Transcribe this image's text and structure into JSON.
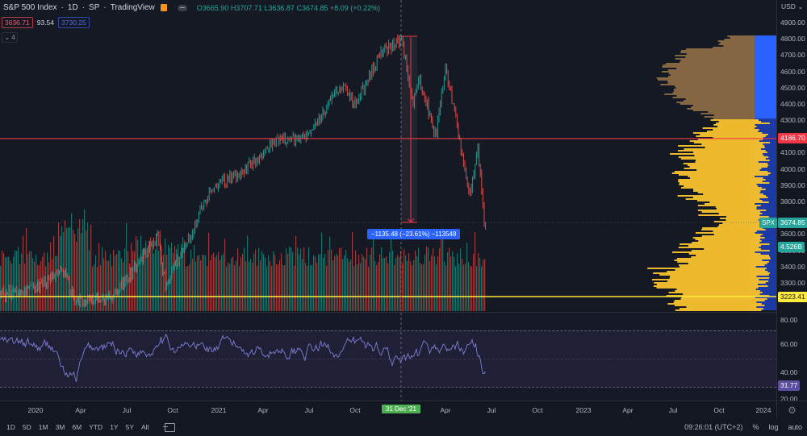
{
  "header": {
    "symbol_title": "S&P 500 Index",
    "interval": "1D",
    "exchange": "SP",
    "source": "TradingView",
    "ohlc": {
      "o_label": "O",
      "o": "3665.90",
      "h_label": "H",
      "h": "3707.71",
      "l_label": "L",
      "l": "3636.87",
      "c_label": "C",
      "c": "3674.85",
      "change": "+8.09 (+0.22%)"
    },
    "indicator_values": {
      "left": "3636.71",
      "mid": "93.54",
      "right": "3730.25"
    },
    "collapse_label": "⌄ 4"
  },
  "price_axis": {
    "currency": "USD",
    "ticks": [
      "4900.00",
      "4800.00",
      "4700.00",
      "4600.00",
      "4500.00",
      "4400.00",
      "4300.00",
      "4100.00",
      "4000.00",
      "3900.00",
      "3800.00",
      "3600.00",
      "3500.00",
      "3400.00",
      "3300.00"
    ],
    "tags": {
      "resistance": {
        "value": "4186.70",
        "color": "#f23645"
      },
      "symbol_label": "SPX",
      "last_price": {
        "value": "3674.85",
        "color": "#26a69a"
      },
      "volume_tag": {
        "value": "4.526B",
        "color": "#26a69a"
      },
      "support": {
        "value": "3223.41",
        "color": "#ffeb3b"
      }
    }
  },
  "rsi_axis": {
    "ticks": [
      "80.00",
      "60.00",
      "40.00",
      "20.00"
    ],
    "current": {
      "value": "31.77",
      "color": "#7e57c2"
    }
  },
  "time_axis": {
    "labels": [
      "2020",
      "Apr",
      "Jul",
      "Oct",
      "2021",
      "Apr",
      "Jul",
      "Oct",
      "Apr",
      "Jul",
      "Oct",
      "2023",
      "Apr",
      "Jul",
      "Oct",
      "2024"
    ],
    "cursor_label": "31 Dec '21"
  },
  "measure": {
    "label": "−1135.48 (−23.61%) −113548"
  },
  "bottom_bar": {
    "ranges": [
      "1D",
      "5D",
      "1M",
      "3M",
      "6M",
      "YTD",
      "1Y",
      "5Y",
      "All"
    ],
    "clock": "09:26:01 (UTC+2)",
    "percent": "%",
    "log": "log",
    "auto": "auto"
  },
  "colors": {
    "up": "#26a69a",
    "down": "#ef5350",
    "background": "#131722",
    "accent": "#2962ff",
    "rsi_line": "#7e7fd6",
    "profile_up": "#fbc02d",
    "profile_value_area": "#1e3fa8"
  },
  "chart_data": {
    "type": "candlestick",
    "title": "S&P 500 Index 1D",
    "key_points": [
      {
        "x": 0,
        "price": 3230
      },
      {
        "x": 35,
        "price": 3250
      },
      {
        "x": 80,
        "price": 3370
      },
      {
        "x": 92,
        "price": 3180
      },
      {
        "x": 140,
        "price": 3220
      },
      {
        "x": 195,
        "price": 3580
      },
      {
        "x": 205,
        "price": 3290
      },
      {
        "x": 225,
        "price": 3480
      },
      {
        "x": 262,
        "price": 3880
      },
      {
        "x": 300,
        "price": 3980
      },
      {
        "x": 340,
        "price": 4170
      },
      {
        "x": 375,
        "price": 4190
      },
      {
        "x": 400,
        "price": 4340
      },
      {
        "x": 425,
        "price": 4530
      },
      {
        "x": 440,
        "price": 4380
      },
      {
        "x": 470,
        "price": 4700
      },
      {
        "x": 497,
        "price": 4800
      },
      {
        "x": 512,
        "price": 4410
      },
      {
        "x": 520,
        "price": 4560
      },
      {
        "x": 540,
        "price": 4200
      },
      {
        "x": 552,
        "price": 4630
      },
      {
        "x": 570,
        "price": 4150
      },
      {
        "x": 582,
        "price": 3810
      },
      {
        "x": 592,
        "price": 4150
      },
      {
        "x": 600,
        "price": 3674
      }
    ],
    "resistance": 4186.7,
    "support": 3223.41,
    "last": 3674.85,
    "rsi_last": 31.77,
    "ylim": [
      3220,
      4920
    ],
    "rsi_range": [
      20,
      85
    ]
  }
}
